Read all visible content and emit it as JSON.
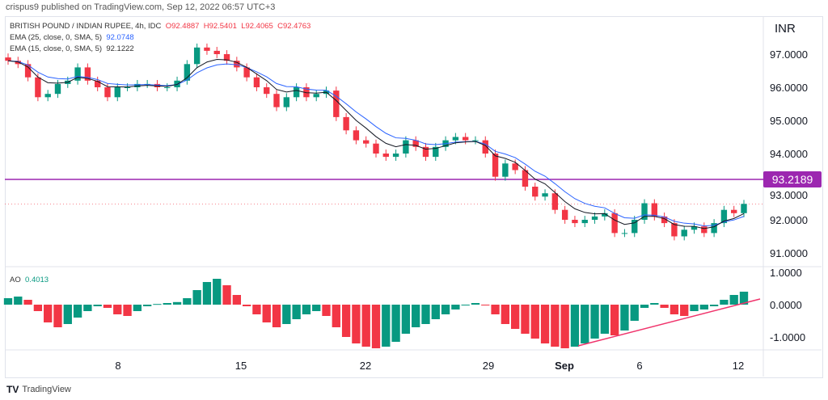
{
  "header": {
    "published": "crispus9 published on TradingView.com, Sep 12, 2022 06:57 UTC+3"
  },
  "legend": {
    "symbol": "BRITISH POUND / INDIAN RUPEE, 4h, IDC",
    "open": "O92.4887",
    "high": "H92.5401",
    "low": "L92.4065",
    "close": "C92.4763",
    "ema25_label": "EMA (25, close, 0, SMA, 5)",
    "ema25_value": "92.0748",
    "ema15_label": "EMA (15, close, 0, SMA, 5)",
    "ema15_value": "92.1222",
    "ao_label": "AO",
    "ao_value": "0.4013"
  },
  "footer": {
    "brand": "TradingView"
  },
  "colors": {
    "up": "#089981",
    "down": "#f23645",
    "ema25": "#2962ff",
    "ema15": "#131722",
    "level": "#9c27b0",
    "trendline": "#f0336b"
  },
  "chart_data": [
    {
      "type": "candlestick",
      "currency": "INR",
      "title": "BRITISH POUND / INDIAN RUPEE, 4h, IDC",
      "y_ticks": [
        "97.0000",
        "96.0000",
        "95.0000",
        "94.0000",
        "93.0000",
        "92.0000",
        "91.0000"
      ],
      "ylim": [
        90.6,
        98.1
      ],
      "x_ticks": [
        "8",
        "15",
        "22",
        "29",
        "Sep",
        "6",
        "12"
      ],
      "horizontal_level": {
        "value": 93.2189,
        "label": "93.2189"
      },
      "last_price": 92.4763,
      "closes": [
        96.8,
        96.7,
        96.3,
        95.7,
        95.8,
        96.1,
        96.2,
        96.6,
        96.2,
        96.0,
        95.7,
        96.0,
        96.0,
        96.1,
        96.1,
        96.0,
        96.0,
        96.2,
        96.7,
        97.2,
        97.1,
        97.0,
        96.8,
        96.6,
        96.3,
        96.0,
        95.8,
        95.4,
        95.7,
        96.0,
        95.7,
        95.8,
        95.9,
        95.1,
        94.7,
        94.4,
        94.3,
        94.0,
        93.9,
        94.0,
        94.4,
        94.2,
        93.9,
        94.2,
        94.4,
        94.5,
        94.4,
        94.4,
        94.0,
        93.3,
        93.7,
        93.5,
        93.0,
        92.7,
        92.8,
        92.3,
        92.0,
        91.9,
        92.0,
        92.1,
        92.2,
        91.6,
        91.6,
        92.0,
        92.5,
        92.1,
        91.9,
        91.5,
        91.7,
        91.8,
        91.6,
        91.9,
        92.3,
        92.2,
        92.48
      ]
    },
    {
      "type": "bar",
      "title": "AO",
      "y_ticks": [
        "1.0000",
        "0.0000",
        "-1.0000"
      ],
      "ylim": [
        -1.5,
        1.1
      ],
      "values": [
        0.2,
        0.25,
        0.15,
        -0.2,
        -0.55,
        -0.7,
        -0.6,
        -0.4,
        -0.2,
        -0.05,
        -0.1,
        -0.3,
        -0.35,
        -0.2,
        -0.05,
        0.02,
        0.05,
        0.08,
        0.2,
        0.45,
        0.7,
        0.8,
        0.6,
        0.3,
        -0.05,
        -0.3,
        -0.55,
        -0.7,
        -0.6,
        -0.45,
        -0.3,
        -0.2,
        -0.35,
        -0.7,
        -1.0,
        -1.2,
        -1.3,
        -1.35,
        -1.3,
        -1.15,
        -0.9,
        -0.7,
        -0.6,
        -0.45,
        -0.3,
        -0.15,
        0.0,
        0.05,
        0.0,
        -0.3,
        -0.6,
        -0.75,
        -0.9,
        -1.05,
        -1.2,
        -1.3,
        -1.35,
        -1.3,
        -1.2,
        -1.05,
        -0.9,
        -0.95,
        -0.8,
        -0.5,
        -0.1,
        0.05,
        -0.1,
        -0.3,
        -0.35,
        -0.2,
        -0.15,
        -0.05,
        0.15,
        0.3,
        0.4013
      ]
    }
  ]
}
